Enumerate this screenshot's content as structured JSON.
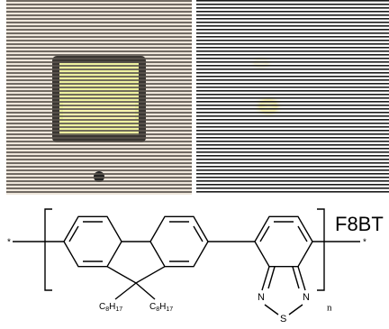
{
  "figure": {
    "label": "F8BT",
    "end_left": "*",
    "end_right": "*",
    "repeat": "n",
    "substituents": [
      [
        "C",
        "8",
        "H",
        "17"
      ],
      [
        "C",
        "8",
        "H",
        "17"
      ]
    ],
    "atoms": [
      "N",
      "S",
      "N"
    ]
  }
}
